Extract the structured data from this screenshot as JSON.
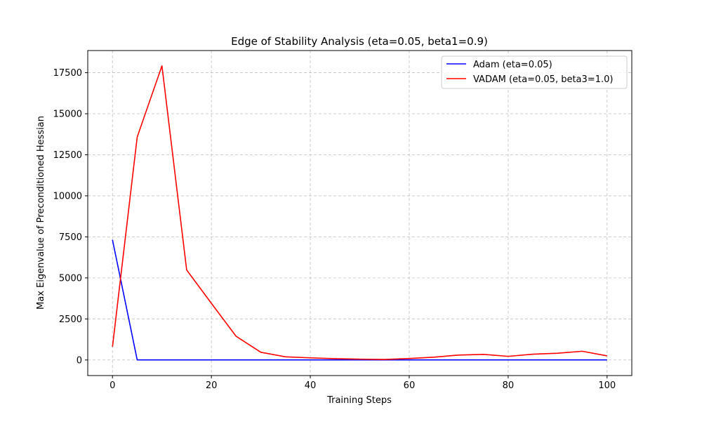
{
  "chart_data": {
    "type": "line",
    "title": "Edge of Stability Analysis (eta=0.05, beta1=0.9)",
    "xlabel": "Training Steps",
    "ylabel": "Max Eigenvalue of Preconditioned Hessian",
    "xlim": [
      -5,
      105
    ],
    "ylim": [
      -950,
      18850
    ],
    "xticks": [
      0,
      20,
      40,
      60,
      80,
      100
    ],
    "yticks": [
      0,
      2500,
      5000,
      7500,
      10000,
      12500,
      15000,
      17500
    ],
    "grid": true,
    "legend_position": "upper-right",
    "series": [
      {
        "name": "Adam (eta=0.05)",
        "color": "#0000ff",
        "x": [
          0,
          5,
          10,
          15,
          20,
          25,
          30,
          35,
          40,
          45,
          50,
          55,
          60,
          65,
          70,
          75,
          80,
          85,
          90,
          95,
          100
        ],
        "y": [
          7320,
          5,
          3,
          3,
          3,
          3,
          3,
          3,
          3,
          3,
          3,
          3,
          3,
          3,
          3,
          3,
          3,
          3,
          3,
          3,
          3
        ]
      },
      {
        "name": "VADAM (eta=0.05, beta3=1.0)",
        "color": "#ff0000",
        "x": [
          0,
          5,
          10,
          15,
          20,
          25,
          30,
          35,
          40,
          45,
          50,
          55,
          60,
          65,
          70,
          75,
          80,
          85,
          90,
          95,
          100
        ],
        "y": [
          800,
          13580,
          17920,
          5480,
          3450,
          1440,
          470,
          190,
          130,
          80,
          50,
          30,
          90,
          170,
          300,
          340,
          220,
          350,
          410,
          530,
          250
        ]
      }
    ]
  }
}
